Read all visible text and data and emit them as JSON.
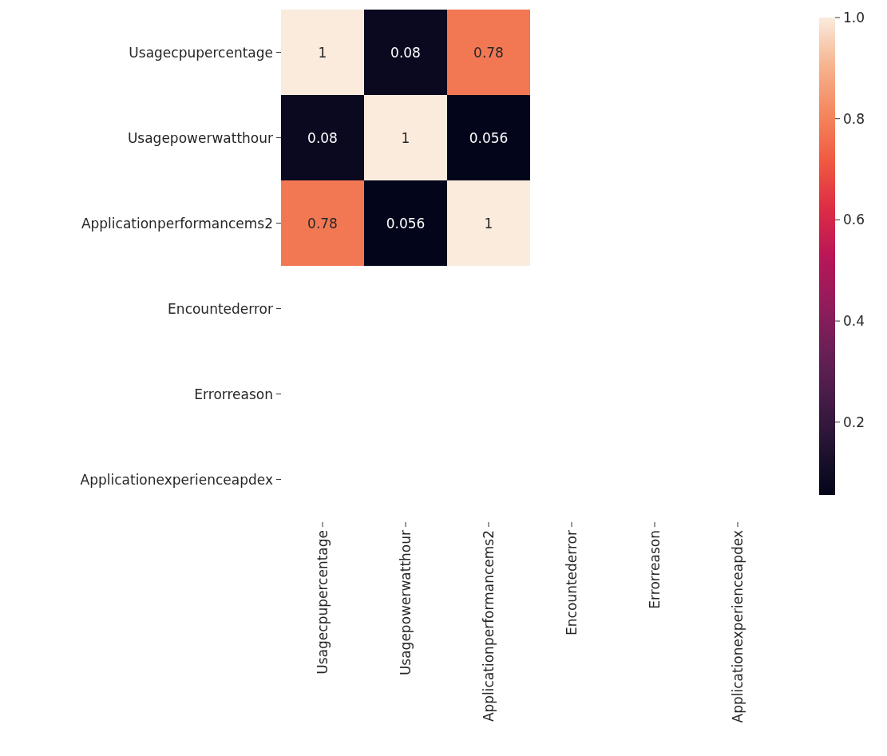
{
  "chart_data": {
    "type": "heatmap",
    "categories": [
      "Usagecpupercentage",
      "Usagepowerwatthour",
      "Applicationperformancems2",
      "Encountederror",
      "Errorreason",
      "Applicationexperienceapdex"
    ],
    "y_categories": [
      "Usagecpupercentage",
      "Usagepowerwatthour",
      "Applicationperformancems2",
      "Encountederror",
      "Errorreason",
      "Applicationexperienceapdex"
    ],
    "cells": [
      [
        1,
        0.08,
        0.78,
        null,
        null,
        null
      ],
      [
        0.08,
        1,
        0.056,
        null,
        null,
        null
      ],
      [
        0.78,
        0.056,
        1,
        null,
        null,
        null
      ],
      [
        null,
        null,
        null,
        null,
        null,
        null
      ],
      [
        null,
        null,
        null,
        null,
        null,
        null
      ],
      [
        null,
        null,
        null,
        null,
        null,
        null
      ]
    ],
    "clim": [
      0.056,
      1
    ],
    "cticks": [
      {
        "value": 0.2,
        "label": "0.2"
      },
      {
        "value": 0.4,
        "label": "0.4"
      },
      {
        "value": 0.6,
        "label": "0.6"
      },
      {
        "value": 0.8,
        "label": "0.8"
      },
      {
        "value": 1,
        "label": "1.0"
      }
    ],
    "data_labels": true
  }
}
